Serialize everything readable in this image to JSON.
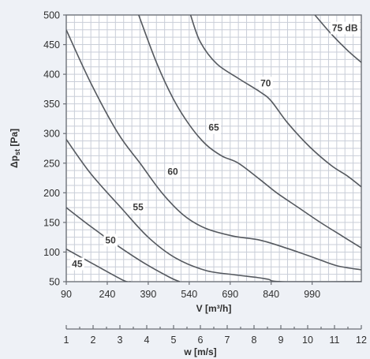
{
  "chart_data": {
    "type": "line",
    "title": "",
    "xlabel": "V [m³/h]",
    "ylabel_parts": {
      "delta": "Δp",
      "subscript": "st",
      "unit": " [Pa]"
    },
    "xlim": [
      90,
      1170
    ],
    "ylim": [
      50,
      500
    ],
    "x_ticks": [
      "90",
      "240",
      "390",
      "540",
      "690",
      "840",
      "990"
    ],
    "x_tick_values": [
      90,
      240,
      390,
      540,
      690,
      840,
      990
    ],
    "y_ticks": [
      "50",
      "100",
      "150",
      "200",
      "250",
      "300",
      "350",
      "400",
      "450",
      "500"
    ],
    "y_tick_values": [
      50,
      100,
      150,
      200,
      250,
      300,
      350,
      400,
      450,
      500
    ],
    "grid": true,
    "secondary_axis": {
      "label": "w [m/s]",
      "ticks": [
        "1",
        "2",
        "3",
        "4",
        "5",
        "6",
        "7",
        "8",
        "9",
        "10",
        "11",
        "12"
      ],
      "tick_values": [
        1,
        2,
        3,
        4,
        5,
        6,
        7,
        8,
        9,
        10,
        11,
        12
      ],
      "range": [
        1,
        12
      ]
    },
    "series": [
      {
        "name": "45",
        "label_text": "45",
        "label_at": [
          130,
          80
        ],
        "points": [
          [
            90,
            105
          ],
          [
            200,
            77
          ],
          [
            300,
            52
          ],
          [
            325,
            50
          ]
        ]
      },
      {
        "name": "50",
        "label_text": "50",
        "label_at": [
          252,
          120
        ],
        "points": [
          [
            90,
            175
          ],
          [
            180,
            143
          ],
          [
            280,
            110
          ],
          [
            380,
            80
          ],
          [
            470,
            57
          ],
          [
            505,
            50
          ]
        ]
      },
      {
        "name": "55",
        "label_text": "55",
        "label_at": [
          353,
          176
        ],
        "points": [
          [
            90,
            290
          ],
          [
            180,
            232
          ],
          [
            290,
            175
          ],
          [
            390,
            125
          ],
          [
            490,
            90
          ],
          [
            600,
            69
          ],
          [
            700,
            62
          ],
          [
            790,
            57
          ],
          [
            830,
            54
          ],
          [
            880,
            50
          ],
          [
            1170,
            50
          ]
        ]
      },
      {
        "name": "60",
        "label_text": "60",
        "label_at": [
          480,
          236
        ],
        "points": [
          [
            90,
            475
          ],
          [
            180,
            385
          ],
          [
            280,
            300
          ],
          [
            360,
            250
          ],
          [
            440,
            200
          ],
          [
            520,
            162
          ],
          [
            600,
            140
          ],
          [
            700,
            127
          ],
          [
            800,
            120
          ],
          [
            900,
            106
          ],
          [
            1000,
            90
          ],
          [
            1080,
            77
          ],
          [
            1170,
            70
          ]
        ]
      },
      {
        "name": "65",
        "label_text": "65",
        "label_at": [
          630,
          310
        ],
        "points": [
          [
            355,
            500
          ],
          [
            420,
            420
          ],
          [
            480,
            360
          ],
          [
            540,
            315
          ],
          [
            600,
            282
          ],
          [
            660,
            262
          ],
          [
            720,
            250
          ],
          [
            800,
            222
          ],
          [
            860,
            200
          ],
          [
            940,
            175
          ],
          [
            1020,
            150
          ],
          [
            1100,
            127
          ],
          [
            1170,
            107
          ]
        ]
      },
      {
        "name": "70",
        "label_text": "70",
        "label_at": [
          820,
          385
        ],
        "points": [
          [
            545,
            500
          ],
          [
            580,
            455
          ],
          [
            640,
            418
          ],
          [
            720,
            393
          ],
          [
            800,
            370
          ],
          [
            840,
            355
          ],
          [
            900,
            318
          ],
          [
            980,
            278
          ],
          [
            1060,
            246
          ],
          [
            1120,
            228
          ],
          [
            1170,
            210
          ]
        ]
      },
      {
        "name": "75 dB",
        "label_text": "75 dB",
        "label_at": [
          1110,
          478
        ],
        "points": [
          [
            1000,
            500
          ],
          [
            1060,
            468
          ],
          [
            1120,
            440
          ],
          [
            1170,
            420
          ]
        ]
      }
    ]
  }
}
